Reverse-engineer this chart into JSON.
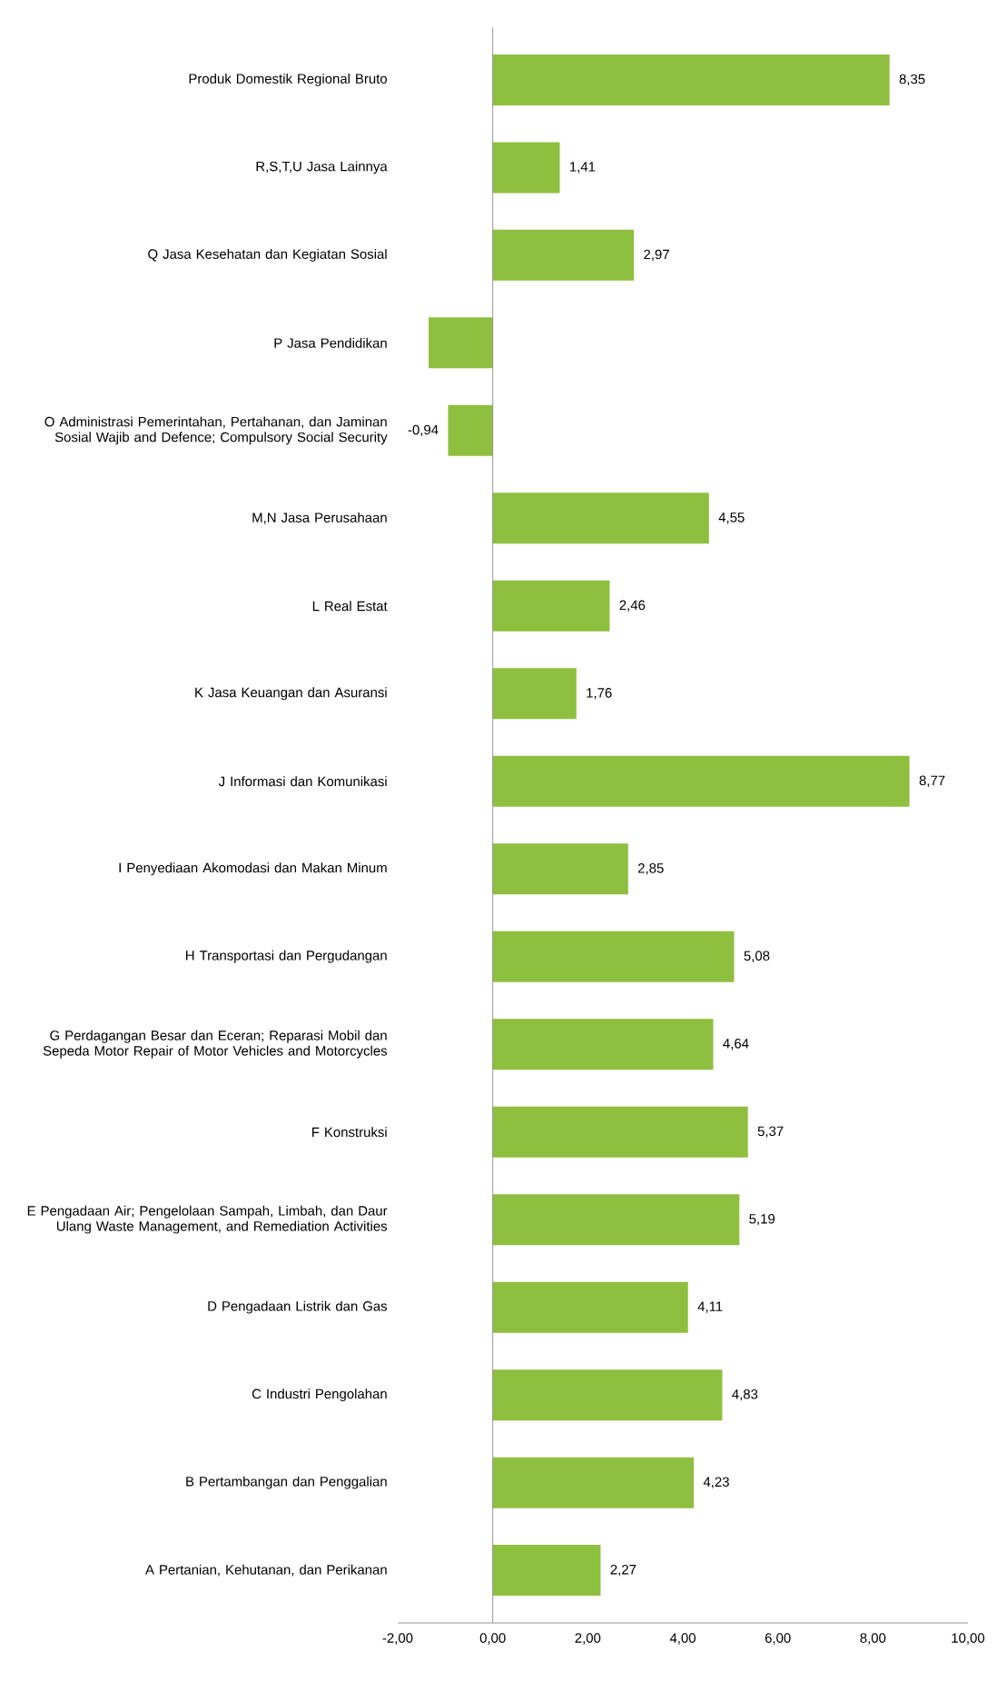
{
  "chart_data": {
    "type": "bar",
    "orientation": "horizontal",
    "categories": [
      "Produk Domestik Regional Bruto",
      "R,S,T,U Jasa Lainnya",
      "Q Jasa Kesehatan dan Kegiatan Sosial",
      "P Jasa Pendidikan",
      "O Administrasi Pemerintahan, Pertahanan, dan Jaminan Sosial Wajib and Defence; Compulsory Social Security",
      "M,N Jasa Perusahaan",
      "L Real Estat",
      "K Jasa Keuangan dan Asuransi",
      "J Informasi dan Komunikasi",
      "I Penyediaan Akomodasi dan Makan Minum",
      "H Transportasi dan Pergudangan",
      "G Perdagangan Besar dan Eceran; Reparasi Mobil dan Sepeda Motor Repair of Motor Vehicles and Motorcycles",
      "F Konstruksi",
      "E Pengadaan Air; Pengelolaan Sampah, Limbah, dan Daur Ulang Waste Management, and Remediation Activities",
      "D Pengadaan Listrik dan Gas",
      "C Industri Pengolahan",
      "B Pertambangan dan Penggalian",
      "A Pertanian, Kehutanan, dan Perikanan"
    ],
    "values": [
      8.35,
      1.41,
      2.97,
      -1.35,
      -0.94,
      4.55,
      2.46,
      1.76,
      8.77,
      2.85,
      5.08,
      4.64,
      5.37,
      5.19,
      4.11,
      4.83,
      4.23,
      2.27
    ],
    "value_labels": [
      "8,35",
      "1,41",
      "2,97",
      null,
      "-0,94",
      "4,55",
      "2,46",
      "1,76",
      "8,77",
      "2,85",
      "5,08",
      "4,64",
      "5,37",
      "5,19",
      "4,11",
      "4,83",
      "4,23",
      "2,27"
    ],
    "color": "#8fbf3f",
    "xlim": [
      -2,
      10
    ],
    "xticks": [
      {
        "value": -2,
        "label": "-2,00"
      },
      {
        "value": 0,
        "label": "0,00"
      },
      {
        "value": 2,
        "label": "2,00"
      },
      {
        "value": 4,
        "label": "4,00"
      },
      {
        "value": 6,
        "label": "6,00"
      },
      {
        "value": 8,
        "label": "8,00"
      },
      {
        "value": 10,
        "label": "10,00"
      }
    ]
  }
}
